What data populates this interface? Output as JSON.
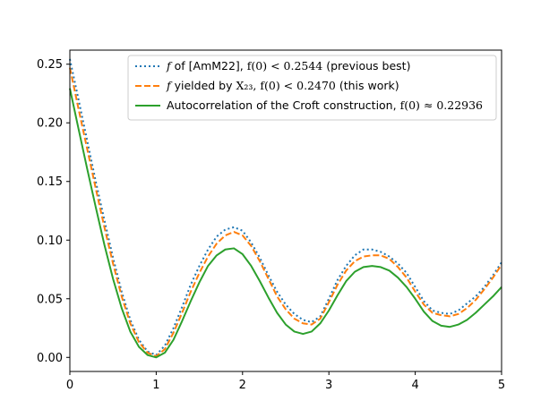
{
  "chart_data": {
    "type": "line",
    "title": "",
    "xlabel": "",
    "ylabel": "",
    "xlim": [
      0,
      5
    ],
    "ylim": [
      -0.012,
      0.262
    ],
    "xticks": [
      0,
      1,
      2,
      3,
      4,
      5
    ],
    "yticks": [
      0.0,
      0.05,
      0.1,
      0.15,
      0.2,
      0.25
    ],
    "xtick_labels": [
      "0",
      "1",
      "2",
      "3",
      "4",
      "5"
    ],
    "ytick_labels": [
      "0.00",
      "0.05",
      "0.10",
      "0.15",
      "0.20",
      "0.25"
    ],
    "grid": false,
    "legend_position": "top-right",
    "colors": {
      "blue": "#1f77b4",
      "orange": "#ff7f0e",
      "green": "#2ca02c"
    },
    "series": [
      {
        "key": "amm22",
        "style": "dotted",
        "color": "#1f77b4",
        "legend": {
          "f": "f",
          "text1": " of [AmM22], ",
          "math": "f(0) < 0.2544",
          "text2": " (previous best)"
        },
        "x": [
          0,
          0.1,
          0.2,
          0.3,
          0.4,
          0.5,
          0.6,
          0.7,
          0.8,
          0.9,
          1.0,
          1.1,
          1.2,
          1.3,
          1.4,
          1.5,
          1.6,
          1.7,
          1.8,
          1.9,
          2.0,
          2.1,
          2.2,
          2.3,
          2.4,
          2.5,
          2.6,
          2.7,
          2.8,
          2.9,
          3.0,
          3.1,
          3.2,
          3.3,
          3.4,
          3.5,
          3.6,
          3.7,
          3.8,
          3.9,
          4.0,
          4.1,
          4.2,
          4.3,
          4.4,
          4.5,
          4.6,
          4.7,
          4.8,
          4.9,
          5.0
        ],
        "y": [
          0.2544,
          0.22,
          0.185,
          0.15,
          0.117,
          0.085,
          0.056,
          0.032,
          0.015,
          0.005,
          0.002,
          0.01,
          0.025,
          0.043,
          0.062,
          0.078,
          0.092,
          0.103,
          0.109,
          0.111,
          0.108,
          0.098,
          0.085,
          0.07,
          0.056,
          0.045,
          0.037,
          0.032,
          0.03,
          0.035,
          0.05,
          0.066,
          0.078,
          0.087,
          0.092,
          0.092,
          0.09,
          0.086,
          0.08,
          0.072,
          0.06,
          0.048,
          0.04,
          0.038,
          0.037,
          0.04,
          0.046,
          0.052,
          0.06,
          0.07,
          0.081
        ]
      },
      {
        "key": "x23",
        "style": "dashed",
        "color": "#ff7f0e",
        "legend": {
          "f": "f",
          "text1": " yielded by ",
          "math": "X₂₃, f(0) < 0.2470",
          "text2": " (this work)"
        },
        "x": [
          0,
          0.1,
          0.2,
          0.3,
          0.4,
          0.5,
          0.6,
          0.7,
          0.8,
          0.9,
          1.0,
          1.1,
          1.2,
          1.3,
          1.4,
          1.5,
          1.6,
          1.7,
          1.8,
          1.9,
          2.0,
          2.1,
          2.2,
          2.3,
          2.4,
          2.5,
          2.6,
          2.7,
          2.8,
          2.9,
          3.0,
          3.1,
          3.2,
          3.3,
          3.4,
          3.5,
          3.6,
          3.7,
          3.8,
          3.9,
          4.0,
          4.1,
          4.2,
          4.3,
          4.4,
          4.5,
          4.6,
          4.7,
          4.8,
          4.9,
          5.0
        ],
        "y": [
          0.247,
          0.212,
          0.178,
          0.144,
          0.111,
          0.08,
          0.052,
          0.029,
          0.013,
          0.004,
          0.001,
          0.007,
          0.021,
          0.038,
          0.056,
          0.072,
          0.086,
          0.097,
          0.104,
          0.107,
          0.104,
          0.095,
          0.082,
          0.067,
          0.052,
          0.041,
          0.033,
          0.029,
          0.028,
          0.033,
          0.047,
          0.062,
          0.074,
          0.082,
          0.086,
          0.087,
          0.087,
          0.084,
          0.077,
          0.068,
          0.056,
          0.045,
          0.038,
          0.036,
          0.035,
          0.037,
          0.042,
          0.049,
          0.058,
          0.068,
          0.079
        ]
      },
      {
        "key": "croft",
        "style": "solid",
        "color": "#2ca02c",
        "legend": {
          "f": "",
          "text1": "Autocorrelation of the Croft construction, ",
          "math": "f(0) ≈ 0.22936",
          "text2": ""
        },
        "x": [
          0,
          0.1,
          0.2,
          0.3,
          0.4,
          0.5,
          0.6,
          0.7,
          0.8,
          0.9,
          1.0,
          1.1,
          1.2,
          1.3,
          1.4,
          1.5,
          1.6,
          1.7,
          1.8,
          1.9,
          2.0,
          2.1,
          2.2,
          2.3,
          2.4,
          2.5,
          2.6,
          2.7,
          2.8,
          2.9,
          3.0,
          3.1,
          3.2,
          3.3,
          3.4,
          3.5,
          3.6,
          3.7,
          3.8,
          3.9,
          4.0,
          4.1,
          4.2,
          4.3,
          4.4,
          4.5,
          4.6,
          4.7,
          4.8,
          4.9,
          5.0
        ],
        "y": [
          0.22936,
          0.195,
          0.161,
          0.128,
          0.096,
          0.067,
          0.042,
          0.022,
          0.009,
          0.002,
          0.0,
          0.004,
          0.015,
          0.031,
          0.048,
          0.064,
          0.078,
          0.087,
          0.092,
          0.093,
          0.088,
          0.078,
          0.065,
          0.051,
          0.038,
          0.028,
          0.022,
          0.02,
          0.022,
          0.029,
          0.04,
          0.053,
          0.065,
          0.073,
          0.077,
          0.078,
          0.077,
          0.074,
          0.068,
          0.06,
          0.05,
          0.039,
          0.031,
          0.027,
          0.026,
          0.028,
          0.032,
          0.038,
          0.045,
          0.052,
          0.06
        ]
      }
    ]
  }
}
